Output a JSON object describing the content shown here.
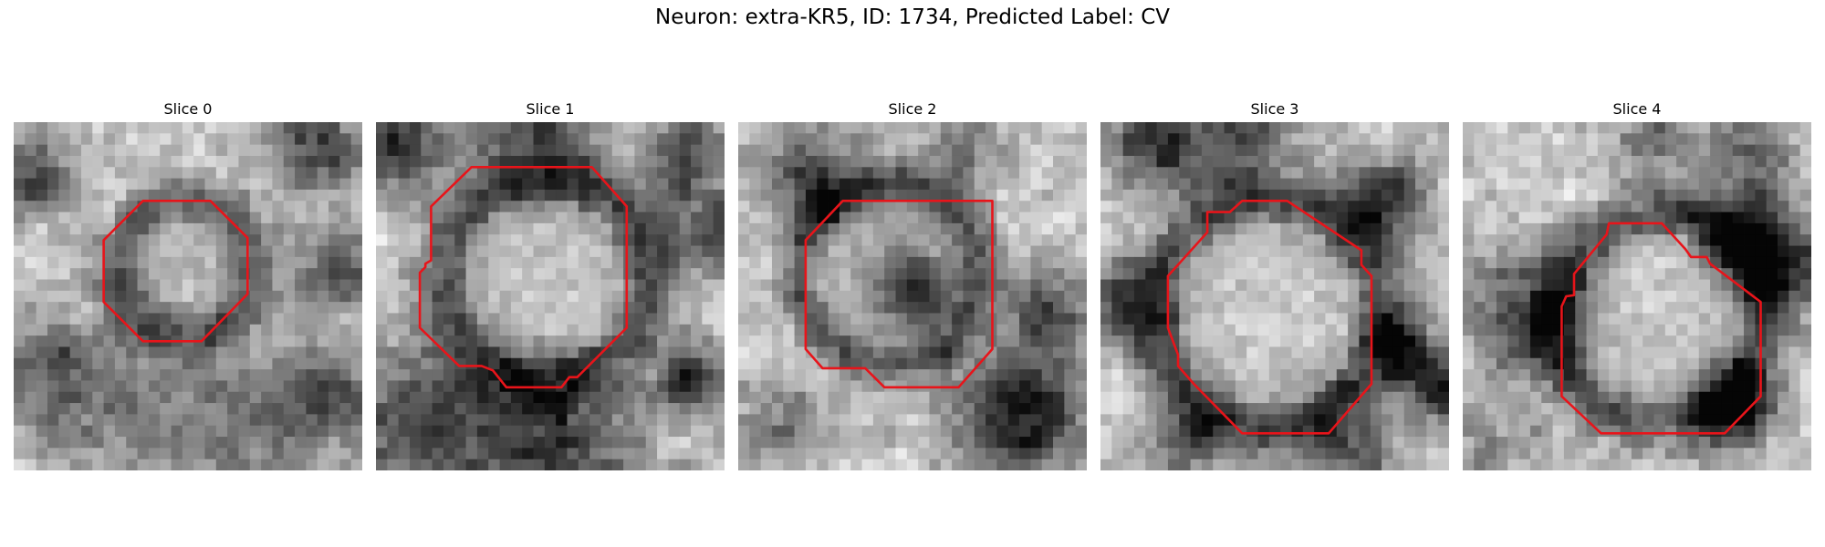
{
  "figure": {
    "title": "Neuron: extra-KR5, ID: 1734, Predicted Label: CV"
  },
  "panels": [
    {
      "label": "Slice 0",
      "contour": "red-octagon"
    },
    {
      "label": "Slice 1",
      "contour": "red-octagon"
    },
    {
      "label": "Slice 2",
      "contour": "red-octagon"
    },
    {
      "label": "Slice 3",
      "contour": "red-octagon"
    },
    {
      "label": "Slice 4",
      "contour": "red-octagon"
    }
  ],
  "colors": {
    "contour": "#e8141a",
    "background": "#ffffff"
  }
}
